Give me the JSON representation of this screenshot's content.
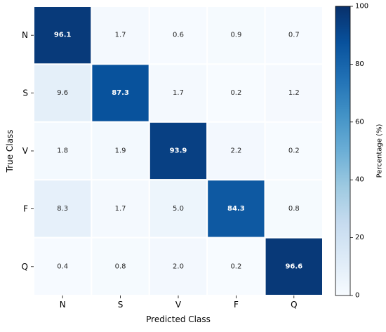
{
  "chart_data": {
    "type": "heatmap",
    "title": "",
    "xlabel": "Predicted Class",
    "ylabel": "True Class",
    "x_categories": [
      "N",
      "S",
      "V",
      "F",
      "Q"
    ],
    "y_categories": [
      "N",
      "S",
      "V",
      "F",
      "Q"
    ],
    "values": [
      [
        96.1,
        1.7,
        0.6,
        0.9,
        0.7
      ],
      [
        9.6,
        87.3,
        1.7,
        0.2,
        1.2
      ],
      [
        1.8,
        1.9,
        93.9,
        2.2,
        0.2
      ],
      [
        8.3,
        1.7,
        5.0,
        84.3,
        0.8
      ],
      [
        0.4,
        0.8,
        2.0,
        0.2,
        96.6
      ]
    ],
    "value_labels": [
      [
        "96.1",
        "1.7",
        "0.6",
        "0.9",
        "0.7"
      ],
      [
        "9.6",
        "87.3",
        "1.7",
        "0.2",
        "1.2"
      ],
      [
        "1.8",
        "1.9",
        "93.9",
        "2.2",
        "0.2"
      ],
      [
        "8.3",
        "1.7",
        "5.0",
        "84.3",
        "0.8"
      ],
      [
        "0.4",
        "0.8",
        "2.0",
        "0.2",
        "96.6"
      ]
    ],
    "colormap": "Blues",
    "colormap_stops": [
      "#f7fbff",
      "#deebf7",
      "#c6dbef",
      "#9ecae1",
      "#6baed6",
      "#4292c6",
      "#2171b5",
      "#08519c",
      "#08306b"
    ],
    "vmin": 0,
    "vmax": 100,
    "colorbar": {
      "label": "Percentage (%)",
      "ticks": [
        0,
        20,
        40,
        60,
        80,
        100
      ],
      "tick_labels": [
        "0",
        "20",
        "40",
        "60",
        "80",
        "100"
      ],
      "placement": "right"
    },
    "annotation_text_colors": {
      "dark_cell": "#ffffff",
      "light_cell": "#262626"
    },
    "grid_line_color": "#ffffff"
  }
}
